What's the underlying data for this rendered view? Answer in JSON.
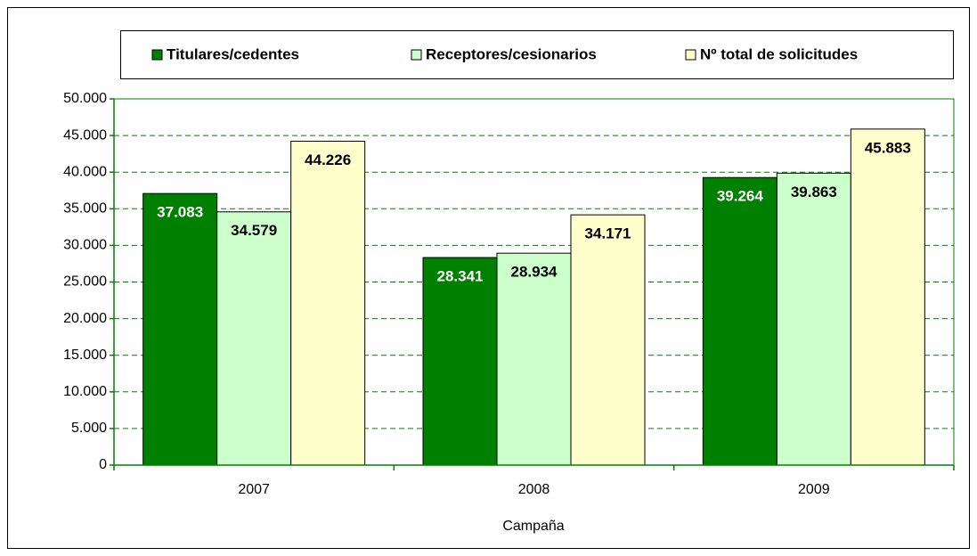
{
  "chart_data": {
    "type": "bar",
    "x_label": "Campaña",
    "categories": [
      "2007",
      "2008",
      "2009"
    ],
    "series": [
      {
        "name": "Titulares/cedentes",
        "color": "#008000",
        "label_color": "#ffffff",
        "values": [
          37083,
          28341,
          39264
        ],
        "value_labels": [
          "37.083",
          "28.341",
          "39.264"
        ]
      },
      {
        "name": "Receptores/cesionarios",
        "color": "#ccffcc",
        "label_color": "#000000",
        "values": [
          34579,
          28934,
          39863
        ],
        "value_labels": [
          "34.579",
          "28.934",
          "39.863"
        ]
      },
      {
        "name": "Nº total de solicitudes",
        "color": "#ffffcc",
        "label_color": "#000000",
        "values": [
          44226,
          34171,
          45883
        ],
        "value_labels": [
          "44.226",
          "34.171",
          "45.883"
        ]
      }
    ],
    "ylim": [
      0,
      50000
    ],
    "yticks": [
      0,
      {
        "value": 5000,
        "label": "5.000"
      },
      {
        "value": 10000,
        "label": "10.000"
      },
      {
        "value": 15000,
        "label": "15.000"
      },
      {
        "value": 20000,
        "label": "20.000"
      },
      {
        "value": 25000,
        "label": "25.000"
      },
      {
        "value": 30000,
        "label": "30.000"
      },
      {
        "value": 35000,
        "label": "35.000"
      },
      {
        "value": 40000,
        "label": "40.000"
      },
      {
        "value": 45000,
        "label": "45.000"
      },
      {
        "value": 50000,
        "label": "50.000"
      }
    ],
    "grid": true,
    "legend": "top"
  }
}
